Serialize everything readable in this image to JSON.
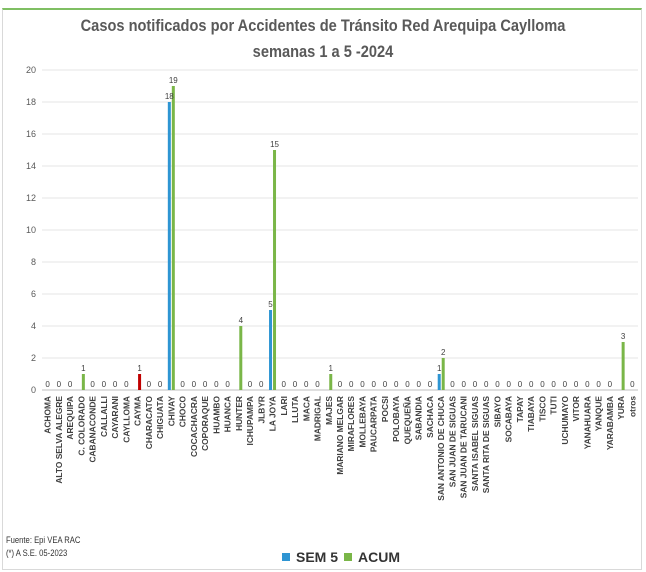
{
  "chart_data": {
    "type": "bar",
    "title": "Casos notificados  por Accidentes de Tránsito Red Arequipa Caylloma",
    "subtitle": "semanas 1 a 5  -2024",
    "ylim": [
      0,
      20
    ],
    "yticks": [
      0,
      2,
      4,
      6,
      8,
      10,
      12,
      14,
      16,
      18,
      20
    ],
    "grid": true,
    "legend_position": "bottom",
    "categories": [
      "ACHOMA",
      "ALTO SELVA ALEGRE",
      "AREQUIPA",
      "C. COLORADO",
      "CABANACONDE",
      "CALLALLI",
      "CAYARANI",
      "CAYLLOMA",
      "CAYMA",
      "CHARACATO",
      "CHIGUATA",
      "CHIVAY",
      "CHOCO",
      "COCACHACRA",
      "COPORAQUE",
      "HUAMBO",
      "HUANCA",
      "HUNTER",
      "ICHUPAMPA",
      "JLBYR",
      "LA JOYA",
      "LARI",
      "LLUTA",
      "MACA",
      "MADRIGAL",
      "MAJES",
      "MARIANO MELGAR",
      "MIRAFLORES",
      "MOLLEBAYA",
      "PAUCARPATA",
      "POCSI",
      "POLOBAYA",
      "QUEQUEÑA",
      "SABANDIA",
      "SACHACA",
      "SAN ANTONIO DE CHUCA",
      "SAN JUAN DE SIGUAS",
      "SAN JUAN DE TARUCANI",
      "SANTA ISABEL SIGUAS",
      "SANTA RITA DE SIGUAS",
      "SIBAYO",
      "SOCABAYA",
      "TAPAY",
      "TIABAYA",
      "TISCO",
      "TUTI",
      "UCHUMAYO",
      "VITOR",
      "YANAHUARA",
      "YANQUE",
      "YARABAMBA",
      "YURA",
      "otros"
    ],
    "series": [
      {
        "name": "SEM 5",
        "color": "#2e95d3",
        "values": [
          0,
          0,
          0,
          0,
          0,
          0,
          0,
          0,
          0,
          0,
          0,
          18,
          0,
          0,
          0,
          0,
          0,
          0,
          0,
          0,
          5,
          0,
          0,
          0,
          0,
          0,
          0,
          0,
          0,
          0,
          0,
          0,
          0,
          0,
          0,
          1,
          0,
          0,
          0,
          0,
          0,
          0,
          0,
          0,
          0,
          0,
          0,
          0,
          0,
          0,
          0,
          0,
          0
        ]
      },
      {
        "name": "ACUM",
        "color": "#7ab648",
        "values": [
          0,
          0,
          0,
          1,
          0,
          0,
          0,
          0,
          1,
          0,
          0,
          19,
          0,
          0,
          0,
          0,
          0,
          4,
          0,
          0,
          15,
          0,
          0,
          0,
          0,
          1,
          0,
          0,
          0,
          0,
          0,
          0,
          0,
          0,
          0,
          2,
          0,
          0,
          0,
          0,
          0,
          0,
          0,
          0,
          0,
          0,
          0,
          0,
          0,
          0,
          0,
          3,
          0
        ]
      }
    ],
    "highlight": {
      "index": 8,
      "series": 1,
      "color": "#c00000"
    }
  },
  "source": {
    "line1": "Fuente: Epi VEA RAC",
    "line2": "(*) A S.E. 05-2023"
  }
}
